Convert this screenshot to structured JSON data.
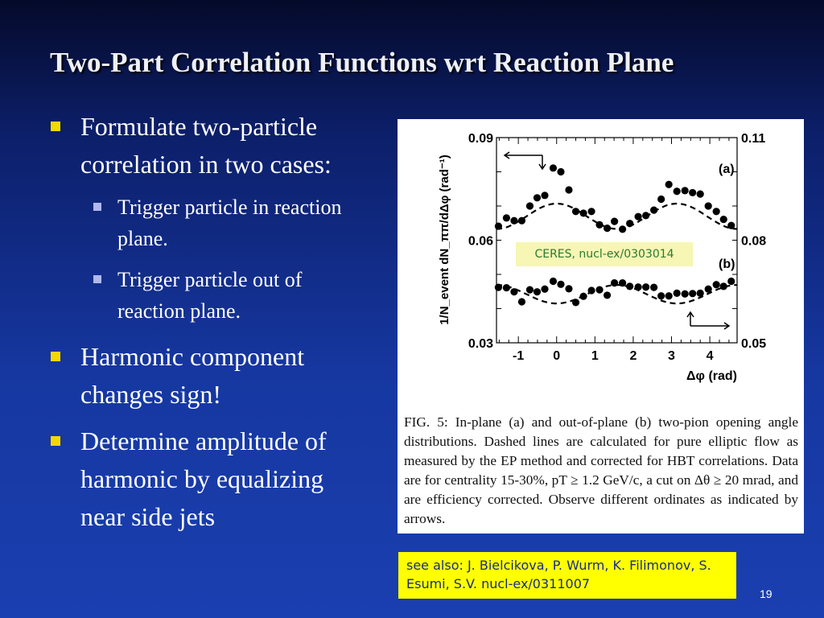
{
  "title": "Two-Part Correlation Functions wrt Reaction Plane",
  "bullets": [
    {
      "lines": [
        "Formulate two-particle",
        "correlation in two cases:"
      ]
    },
    {
      "lines": [
        "Harmonic component",
        "changes sign!"
      ]
    },
    {
      "lines": [
        "Determine amplitude of",
        "harmonic by equalizing",
        "near side jets"
      ]
    }
  ],
  "sub_bullets": [
    {
      "lines": [
        "Trigger particle in reaction",
        "plane."
      ]
    },
    {
      "lines": [
        "Trigger particle out of",
        "reaction plane."
      ]
    }
  ],
  "figure": {
    "ceres_label": "CERES, nucl-ex/0303014",
    "caption": "FIG. 5: In-plane (a) and out-of-plane (b) two-pion opening angle distributions. Dashed lines are calculated for pure elliptic flow as measured by the EP method and corrected for HBT correlations. Data are for centrality 15-30%, pT ≥ 1.2 GeV/c, a cut on Δθ ≥ 20 mrad, and are efficiency corrected. Observe different ordinates as indicated by arrows."
  },
  "see_also": "see also:  J. Bielcikova, P. Wurm, K. Filimonov, S. Esumi, S.V. nucl-ex/0311007",
  "page_number": "19",
  "chart_data": {
    "type": "scatter",
    "xlabel": "Δφ (rad)",
    "ylabel": "1/N_event dN_ππ/dΔφ (rad⁻¹)",
    "xlim": [
      -1.5708,
      4.7124
    ],
    "ylim_left": [
      0.03,
      0.09
    ],
    "ylim_right": [
      0.05,
      0.11
    ],
    "x_ticks": [
      "-1",
      "0",
      "1",
      "2",
      "3",
      "4"
    ],
    "x_tick_values": [
      -1,
      0,
      1,
      2,
      3,
      4
    ],
    "yleft_ticks": [
      "0.03",
      "0.06",
      "0.09"
    ],
    "yright_ticks": [
      "0.05",
      "0.08",
      "0.11"
    ],
    "panel_labels": [
      "(a)",
      "(b)"
    ],
    "x": [
      -1.52,
      -1.31,
      -1.11,
      -0.91,
      -0.7,
      -0.51,
      -0.31,
      -0.09,
      0.11,
      0.32,
      0.5,
      0.7,
      0.91,
      1.12,
      1.32,
      1.51,
      1.72,
      1.91,
      2.13,
      2.33,
      2.54,
      2.73,
      2.93,
      3.14,
      3.35,
      3.55,
      3.75,
      3.96,
      4.17,
      4.36,
      4.56,
      4.76
    ],
    "series": [
      {
        "name": "(a) in-plane",
        "axis": "left",
        "values": [
          0.0641,
          0.0665,
          0.0657,
          0.0657,
          0.07,
          0.0724,
          0.0731,
          0.0811,
          0.08,
          0.0747,
          0.0684,
          0.0679,
          0.0684,
          0.0645,
          0.0635,
          0.0655,
          0.0632,
          0.0649,
          0.0669,
          0.0672,
          0.0688,
          0.072,
          0.0763,
          0.0743,
          0.0745,
          0.0739,
          0.0735,
          0.07,
          0.0684,
          0.0661,
          0.0643,
          0.0651
        ],
        "flow_curve": {
          "mean": 0.067,
          "amp": 0.0037,
          "harmonic": 2
        }
      },
      {
        "name": "(b) out-of-plane",
        "axis": "right",
        "values": [
          0.0662,
          0.0661,
          0.0649,
          0.062,
          0.0655,
          0.0649,
          0.0657,
          0.068,
          0.0671,
          0.0658,
          0.0618,
          0.0636,
          0.0653,
          0.0655,
          0.0639,
          0.0675,
          0.0675,
          0.0665,
          0.0663,
          0.0663,
          0.0662,
          0.0637,
          0.0637,
          0.0645,
          0.0643,
          0.0644,
          0.0645,
          0.0657,
          0.067,
          0.0665,
          0.068,
          0.0675
        ],
        "flow_curve": {
          "mean": 0.0642,
          "amp": -0.0027,
          "harmonic": 2
        }
      }
    ]
  }
}
